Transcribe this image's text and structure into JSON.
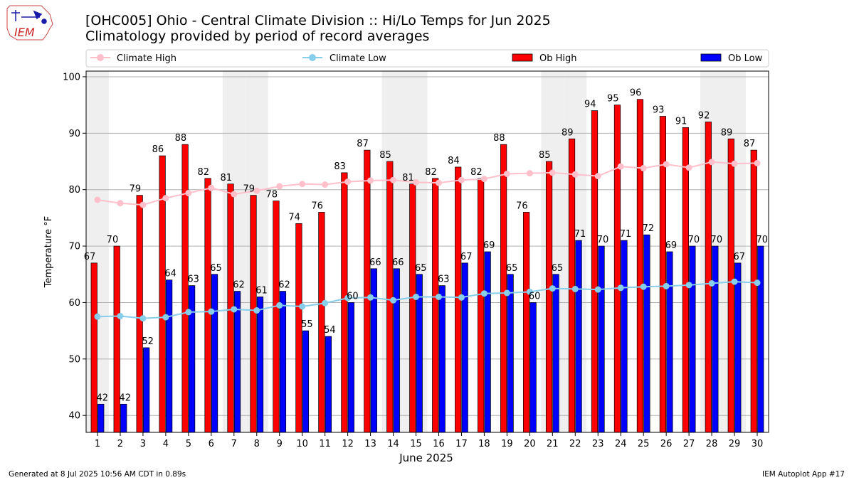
{
  "header": {
    "logo_text": "IEM",
    "title": "[OHC005] Ohio - Central Climate Division :: Hi/Lo Temps for Jun 2025",
    "subtitle": "Climatology provided by period of record averages"
  },
  "footer": {
    "left": "Generated at 8 Jul 2025 10:56 AM CDT in 0.89s",
    "right": "IEM Autoplot App #17"
  },
  "colors": {
    "ob_high": "#ff0000",
    "ob_low": "#0000ff",
    "climate_high": "#ffc0cb",
    "climate_low": "#87ceeb",
    "weekend_shade": "#efefef",
    "grid": "#b0b0b0"
  },
  "chart_data": {
    "type": "bar",
    "title": "[OHC005] Ohio - Central Climate Division :: Hi/Lo Temps for Jun 2025",
    "subtitle": "Climatology provided by period of record averages",
    "xlabel": "June 2025",
    "ylabel": "Temperature °F",
    "ylim": [
      37,
      101
    ],
    "yticks": [
      40,
      50,
      60,
      70,
      80,
      90,
      100
    ],
    "grid": true,
    "legend_position": "top",
    "categories": [
      "1",
      "2",
      "3",
      "4",
      "5",
      "6",
      "7",
      "8",
      "9",
      "10",
      "11",
      "12",
      "13",
      "14",
      "15",
      "16",
      "17",
      "18",
      "19",
      "20",
      "21",
      "22",
      "23",
      "24",
      "25",
      "26",
      "27",
      "28",
      "29",
      "30"
    ],
    "shaded_days": [
      1,
      7,
      8,
      14,
      15,
      21,
      22,
      28,
      29
    ],
    "series": [
      {
        "name": "Ob High",
        "kind": "bar",
        "color": "#ff0000",
        "values": [
          67,
          70,
          79,
          86,
          88,
          82,
          81,
          79,
          78,
          74,
          76,
          83,
          87,
          85,
          81,
          82,
          84,
          82,
          88,
          76,
          85,
          89,
          94,
          95,
          96,
          93,
          91,
          92,
          89,
          87
        ]
      },
      {
        "name": "Ob Low",
        "kind": "bar",
        "color": "#0000ff",
        "values": [
          42,
          42,
          52,
          64,
          63,
          65,
          62,
          61,
          62,
          55,
          54,
          60,
          66,
          66,
          65,
          63,
          67,
          69,
          65,
          60,
          65,
          71,
          70,
          71,
          72,
          69,
          70,
          70,
          67,
          70
        ]
      },
      {
        "name": "Climate High",
        "kind": "line",
        "color": "#ffc0cb",
        "values": [
          78.2,
          77.6,
          77.3,
          78.5,
          79.4,
          80.3,
          79.2,
          79.8,
          80.6,
          81.0,
          80.9,
          81.4,
          81.6,
          81.7,
          81.3,
          81.2,
          81.7,
          81.9,
          82.8,
          82.9,
          83.0,
          82.7,
          82.4,
          84.1,
          83.8,
          84.5,
          83.9,
          84.9,
          84.6,
          84.7
        ]
      },
      {
        "name": "Climate Low",
        "kind": "line",
        "color": "#87ceeb",
        "values": [
          57.5,
          57.6,
          57.2,
          57.4,
          58.3,
          58.4,
          58.8,
          58.6,
          59.5,
          59.3,
          59.9,
          60.8,
          60.9,
          60.4,
          61.0,
          61.0,
          60.9,
          61.6,
          61.7,
          61.9,
          62.5,
          62.4,
          62.3,
          62.6,
          62.8,
          62.9,
          63.1,
          63.4,
          63.7,
          63.5
        ]
      }
    ]
  }
}
